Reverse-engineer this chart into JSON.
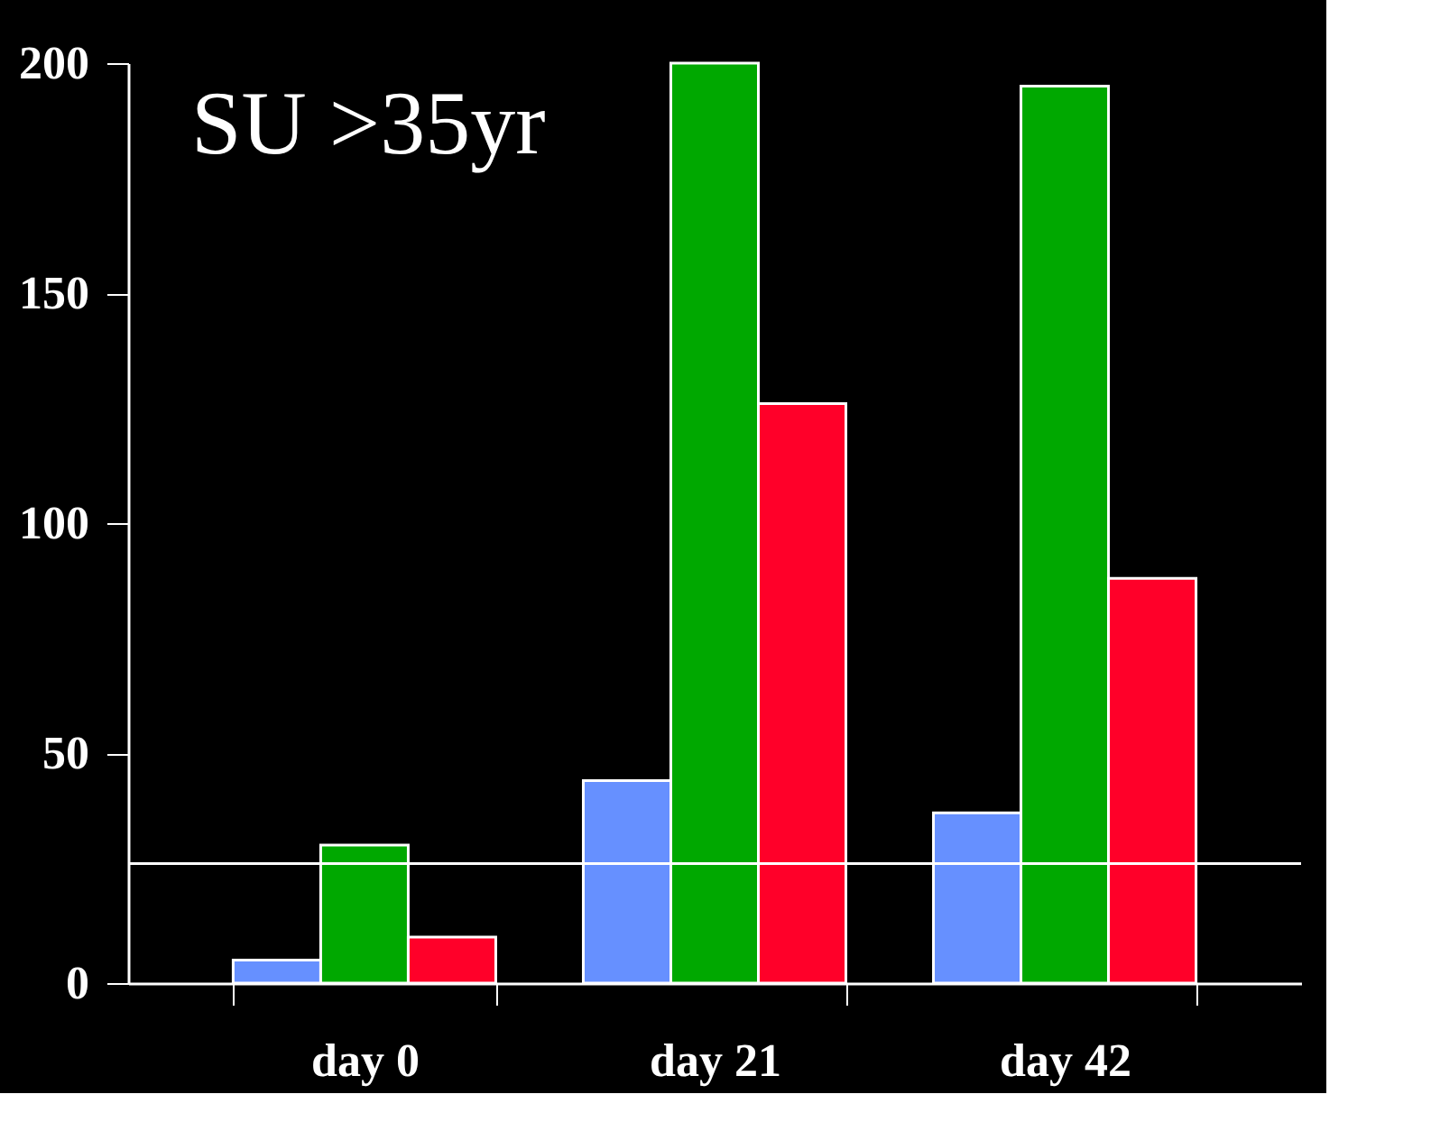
{
  "chart_data": {
    "type": "bar",
    "categories": [
      "day 0",
      "day 21",
      "day 42"
    ],
    "series": [
      {
        "color": "#6690ff",
        "values": [
          5,
          44,
          37
        ]
      },
      {
        "color": "#00a800",
        "values": [
          30,
          200,
          195
        ]
      },
      {
        "color": "#ff0029",
        "values": [
          10,
          126,
          88
        ]
      }
    ],
    "ylim": [
      0,
      200
    ],
    "yticks": [
      0,
      50,
      100,
      150,
      200
    ],
    "ref_lines": [
      {
        "axis": "y",
        "value": 26,
        "color": "#ffffff"
      }
    ],
    "annotations": [
      "SU >35yr"
    ],
    "grid": false
  }
}
